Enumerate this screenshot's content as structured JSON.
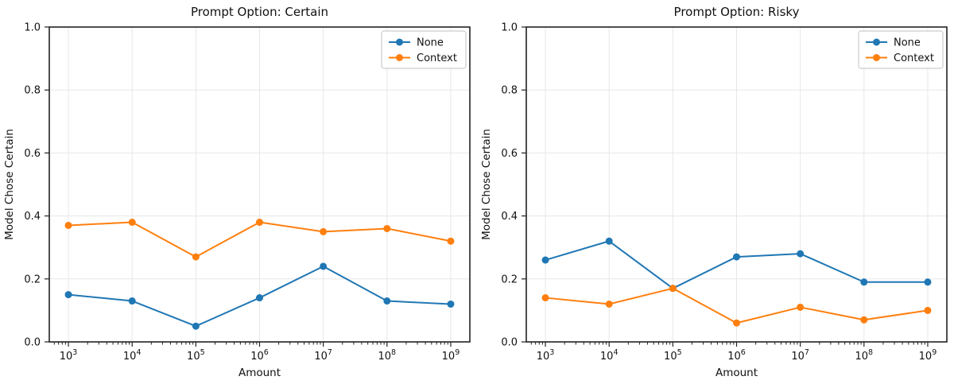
{
  "figure": {
    "background": "#ffffff",
    "grid_color": "#e7e7e7",
    "spine_color": "#222222",
    "tick_color": "#222222",
    "legend_border_color": "#cccccc",
    "legend_background": "#ffffff"
  },
  "chart_data": [
    {
      "type": "line",
      "title": "Prompt Option: Certain",
      "xlabel": "Amount",
      "ylabel": "Model Chose Certain",
      "xscale": "log",
      "x_tick_exponents": [
        3,
        4,
        5,
        6,
        7,
        8,
        9
      ],
      "x_tick_base": "10",
      "ylim": [
        0.0,
        1.0
      ],
      "yticks": [
        0.0,
        0.2,
        0.4,
        0.6,
        0.8,
        1.0
      ],
      "grid": true,
      "legend_position": "upper right",
      "legend_entries": [
        "None",
        "Context"
      ],
      "series": [
        {
          "name": "None",
          "color": "#1f77b4",
          "marker": "circle",
          "values": [
            0.15,
            0.13,
            0.05,
            0.14,
            0.24,
            0.13,
            0.12
          ]
        },
        {
          "name": "Context",
          "color": "#ff7f0e",
          "marker": "circle",
          "values": [
            0.37,
            0.38,
            0.27,
            0.38,
            0.35,
            0.36,
            0.32
          ]
        }
      ]
    },
    {
      "type": "line",
      "title": "Prompt Option: Risky",
      "xlabel": "Amount",
      "ylabel": "Model Chose Certain",
      "xscale": "log",
      "x_tick_exponents": [
        3,
        4,
        5,
        6,
        7,
        8,
        9
      ],
      "x_tick_base": "10",
      "ylim": [
        0.0,
        1.0
      ],
      "yticks": [
        0.0,
        0.2,
        0.4,
        0.6,
        0.8,
        1.0
      ],
      "grid": true,
      "legend_position": "upper right",
      "legend_entries": [
        "None",
        "Context"
      ],
      "series": [
        {
          "name": "None",
          "color": "#1f77b4",
          "marker": "circle",
          "values": [
            0.26,
            0.32,
            0.17,
            0.27,
            0.28,
            0.19,
            0.19
          ]
        },
        {
          "name": "Context",
          "color": "#ff7f0e",
          "marker": "circle",
          "values": [
            0.14,
            0.12,
            0.17,
            0.06,
            0.11,
            0.07,
            0.1
          ]
        }
      ]
    }
  ]
}
